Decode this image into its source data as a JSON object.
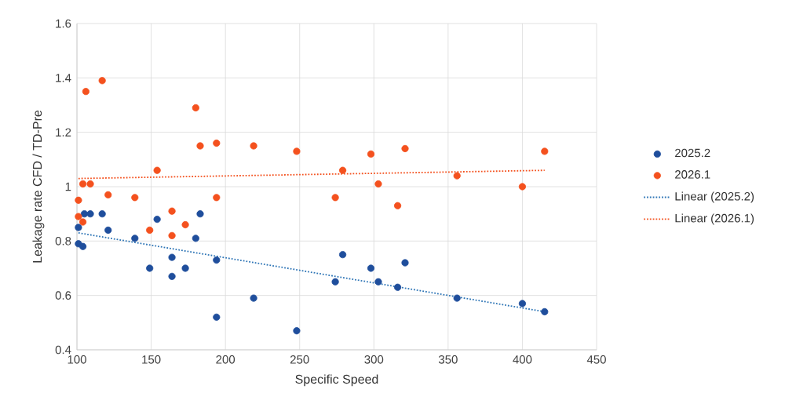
{
  "chart_data": {
    "type": "scatter",
    "xlabel": "Specific Speed",
    "ylabel": "Leakage rate CFD / TD-Pre",
    "xlim": [
      100,
      450
    ],
    "xticks": [
      100,
      150,
      200,
      250,
      300,
      350,
      400,
      450
    ],
    "ylim": [
      0.4,
      1.6
    ],
    "yticks": [
      {
        "value": 0.4,
        "label": "0.4"
      },
      {
        "value": 0.6,
        "label": "0.6"
      },
      {
        "value": 0.8,
        "label": "0.8"
      },
      {
        "value": 1,
        "label": "1"
      },
      {
        "value": 1.2,
        "label": "1.2"
      },
      {
        "value": 1.4,
        "label": "1.4"
      },
      {
        "value": 1.6,
        "label": "1.6"
      }
    ],
    "grid": true,
    "legend": "right",
    "marker": "circle",
    "series": [
      {
        "name": "2025.2",
        "color": "#1f4e9c",
        "x": [
          101,
          101,
          104,
          105,
          109,
          117,
          121,
          139,
          149,
          154,
          164,
          164,
          173,
          180,
          183,
          194,
          194,
          219,
          248,
          274,
          279,
          298,
          303,
          316,
          321,
          356,
          400,
          415
        ],
        "values": [
          0.85,
          0.79,
          0.78,
          0.9,
          0.9,
          0.9,
          0.84,
          0.81,
          0.7,
          0.88,
          0.74,
          0.67,
          0.7,
          0.81,
          0.9,
          0.73,
          0.52,
          0.59,
          0.47,
          0.65,
          0.75,
          0.7,
          0.65,
          0.63,
          0.72,
          0.59,
          0.57,
          0.54
        ]
      },
      {
        "name": "2026.1",
        "color": "#f4511e",
        "x": [
          101,
          101,
          104,
          104,
          106,
          109,
          117,
          121,
          139,
          149,
          154,
          164,
          164,
          173,
          180,
          183,
          194,
          194,
          219,
          248,
          274,
          279,
          298,
          303,
          316,
          321,
          356,
          400,
          415
        ],
        "values": [
          0.95,
          0.89,
          0.87,
          1.01,
          1.35,
          1.01,
          1.39,
          0.97,
          0.96,
          0.84,
          1.06,
          0.91,
          0.82,
          0.86,
          1.29,
          1.15,
          1.16,
          0.96,
          1.15,
          1.13,
          0.96,
          1.06,
          1.12,
          1.01,
          0.93,
          1.14,
          1.04,
          1.0,
          1.13
        ]
      },
      {
        "name": "Linear (2025.2)",
        "type": "line",
        "color": "#2e75b6",
        "line_style": "dotted",
        "marker": "none",
        "x": [
          101,
          415
        ],
        "values": [
          0.83,
          0.54
        ]
      },
      {
        "name": "Linear (2026.1)",
        "type": "line",
        "color": "#f4511e",
        "line_style": "dotted",
        "marker": "none",
        "x": [
          101,
          415
        ],
        "values": [
          1.03,
          1.06
        ]
      }
    ]
  }
}
